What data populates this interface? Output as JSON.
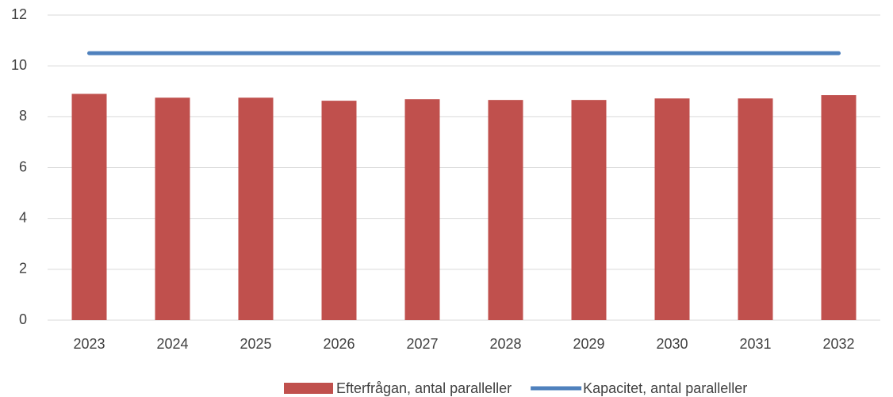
{
  "chart_data": {
    "type": "bar",
    "categories": [
      "2023",
      "2024",
      "2025",
      "2026",
      "2027",
      "2028",
      "2029",
      "2030",
      "2031",
      "2032"
    ],
    "series": [
      {
        "name": "Efterfrågan, antal paralleller",
        "type": "bar",
        "color": "#c0504d",
        "values": [
          8.9,
          8.75,
          8.75,
          8.63,
          8.69,
          8.66,
          8.66,
          8.72,
          8.72,
          8.85
        ]
      },
      {
        "name": "Kapacitet, antal paralleller",
        "type": "line",
        "color": "#4f81bd",
        "values": [
          10.5,
          10.5,
          10.5,
          10.5,
          10.5,
          10.5,
          10.5,
          10.5,
          10.5,
          10.5
        ]
      }
    ],
    "ylim": [
      0,
      12
    ],
    "yticks": [
      0,
      2,
      4,
      6,
      8,
      10,
      12
    ],
    "grid": true,
    "legend": "bottom"
  }
}
